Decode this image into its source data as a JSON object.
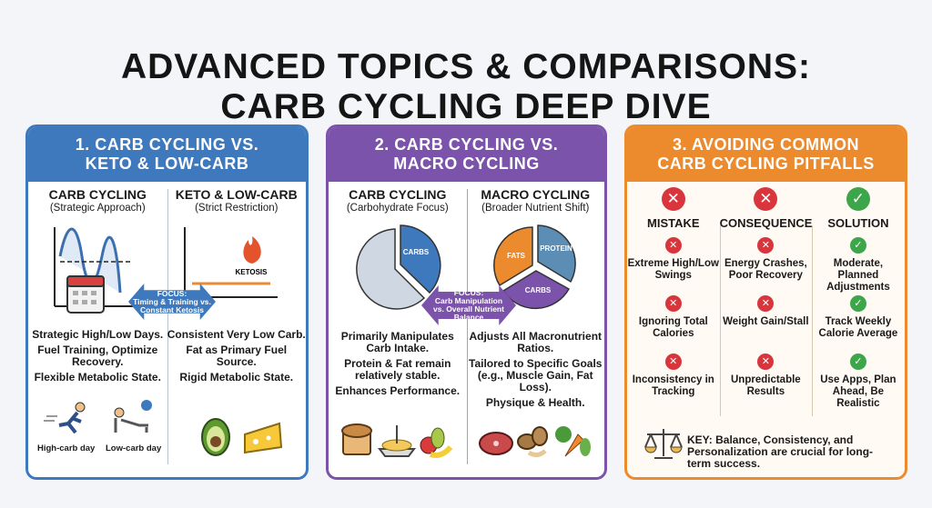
{
  "title": {
    "line1": "ADVANCED TOPICS & COMPARISONS:",
    "line2": "CARB CYCLING DEEP DIVE"
  },
  "colors": {
    "blue": "#3f79bd",
    "purple": "#7b53aa",
    "orange": "#ec8a2e",
    "red": "#d8353d",
    "green": "#3ea64a"
  },
  "panel1": {
    "header_line1": "1. CARB CYCLING VS.",
    "header_line2": "KETO & LOW-CARB",
    "left": {
      "title": "CARB CYCLING",
      "subtitle": "(Strategic Approach)",
      "desc": [
        "Strategic High/Low Days.",
        "Fuel Training, Optimize Recovery.",
        "Flexible Metabolic State."
      ],
      "captions": [
        "High-carb day",
        "Low-carb day"
      ],
      "icons": [
        "calendar-icon",
        "runner-icon",
        "resting-person-icon"
      ]
    },
    "right": {
      "title": "KETO & LOW-CARB",
      "subtitle": "(Strict Restriction)",
      "chart_label": "KETOSIS",
      "desc": [
        "Consistent Very Low Carb.",
        "Fat as Primary Fuel Source.",
        "Rigid Metabolic State."
      ],
      "icons": [
        "flame-icon",
        "avocado-icon",
        "cheese-icon"
      ]
    },
    "focus": {
      "line1": "FOCUS:",
      "line2": "Timing & Training vs.",
      "line3": "Constant Ketosis"
    }
  },
  "panel2": {
    "header_line1": "2. CARB CYCLING VS.",
    "header_line2": "MACRO CYCLING",
    "left": {
      "title": "CARB CYCLING",
      "subtitle": "(Carbohydrate Focus)",
      "pie_label": "CARBS",
      "desc": [
        "Primarily Manipulates Carb Intake.",
        "Protein & Fat remain relatively stable.",
        "Enhances Performance."
      ],
      "icons": [
        "bread-icon",
        "pasta-icon",
        "fruit-icon"
      ]
    },
    "right": {
      "title": "MACRO CYCLING",
      "subtitle": "(Broader Nutrient Shift)",
      "pie_labels": [
        "FATS",
        "PROTEIN",
        "CARBS"
      ],
      "desc": [
        "Adjusts All Macronutrient Ratios.",
        "Tailored to Specific Goals (e.g., Muscle Gain, Fat Loss).",
        "Physique & Health."
      ],
      "icons": [
        "steak-icon",
        "nuts-icon",
        "vegetables-icon"
      ]
    },
    "focus": {
      "line1": "FOCUS:",
      "line2": "Carb Manipulation",
      "line3": "vs. Overall Nutrient",
      "line4": "Balance"
    }
  },
  "panel3": {
    "header_line1": "3. AVOIDING COMMON",
    "header_line2": "CARB CYCLING PITFALLS",
    "columns": [
      {
        "title": "MISTAKE",
        "status": "x",
        "items": [
          "Extreme High/Low Swings",
          "Ignoring Total Calories",
          "Inconsistency in Tracking"
        ]
      },
      {
        "title": "CONSEQUENCE",
        "status": "x",
        "items": [
          "Energy Crashes, Poor Recovery",
          "Weight Gain/Stall",
          "Unpredictable Results"
        ]
      },
      {
        "title": "SOLUTION",
        "status": "check",
        "items": [
          "Moderate, Planned Adjustments",
          "Track Weekly Calorie Average",
          "Use Apps, Plan Ahead, Be Realistic"
        ]
      }
    ],
    "key": "KEY: Balance, Consistency, and Personalization are crucial for long-term success.",
    "glyph_x": "✕",
    "glyph_check": "✓"
  }
}
